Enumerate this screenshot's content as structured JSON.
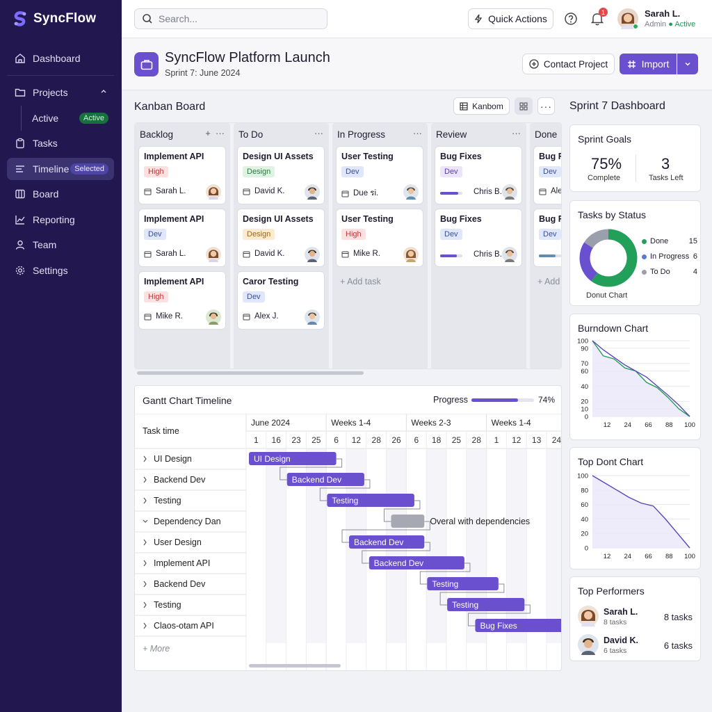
{
  "app": {
    "name": "SyncFlow"
  },
  "sidebar": {
    "items": [
      {
        "label": "Dashboard",
        "icon": "home-icon"
      },
      {
        "label": "Projects",
        "icon": "folder-icon"
      },
      {
        "label": "Active",
        "badge": "Active"
      },
      {
        "label": "Tasks",
        "icon": "clipboard-icon"
      },
      {
        "label": "Timeline",
        "badge": "Selected",
        "icon": "timeline-icon"
      },
      {
        "label": "Board",
        "icon": "board-icon"
      },
      {
        "label": "Reporting",
        "icon": "chart-line-icon"
      },
      {
        "label": "Team",
        "icon": "user-icon"
      },
      {
        "label": "Settings",
        "icon": "gear-icon"
      }
    ]
  },
  "topbar": {
    "search_placeholder": "Search...",
    "quick_actions": "Quick Actions",
    "notif_count": "1",
    "user": {
      "name": "Sarah L.",
      "role": "Admin",
      "status": "Active"
    }
  },
  "project": {
    "title": "SyncFlow Platform Launch",
    "subtitle": "Sprint 7: June 2024",
    "contact_label": "Contact Project",
    "import_label": "Import"
  },
  "kanban": {
    "title": "Kanban Board",
    "view_label": "Kanbom",
    "add_task": "+ Add task",
    "add_short": "+ Add",
    "columns": [
      {
        "title": "Backlog",
        "cards": [
          {
            "title": "Implement API",
            "tag": "High",
            "assignee": "Sarah L."
          },
          {
            "title": "Implement API",
            "tag": "Dev",
            "assignee": "Sarah L."
          },
          {
            "title": "Implement API",
            "tag": "High",
            "assignee": "Mike R."
          }
        ]
      },
      {
        "title": "To Do",
        "cards": [
          {
            "title": "Design UI Assets",
            "tag": "Design",
            "assignee": "David K."
          },
          {
            "title": "Design UI Assets",
            "tag": "Design",
            "assignee": "David K."
          },
          {
            "title": "Caror Testing",
            "tag": "Dev",
            "assignee": "Alex J."
          }
        ]
      },
      {
        "title": "In Progress",
        "cards": [
          {
            "title": "User Testing",
            "tag": "Dev",
            "assignee": "Due รi."
          },
          {
            "title": "User Testing",
            "tag": "High",
            "assignee": "Mike R."
          }
        ]
      },
      {
        "title": "Review",
        "cards": [
          {
            "title": "Bug Fixes",
            "tag": "Dev",
            "assignee": "Chris B.",
            "progress": 0.8
          },
          {
            "title": "Bug Fixes",
            "tag": "Dev",
            "assignee": "Chris B.",
            "progress": 0.75
          }
        ]
      },
      {
        "title": "Done",
        "cards": [
          {
            "title": "Bug Fi",
            "tag": "Dev",
            "assignee": "Ale"
          },
          {
            "title": "Bug Fi",
            "tag": "Dev",
            "progress": 0.75
          }
        ]
      }
    ]
  },
  "gantt": {
    "title": "Gantt Chart Timeline",
    "progress_label": "Progress",
    "progress_value": 0.74,
    "progress_text": "74%",
    "task_header": "Task time",
    "months": [
      "June 2024",
      "Weeks 1-4",
      "Weeks 2-3",
      "Weeks 1-4"
    ],
    "days": [
      "1",
      "16",
      "23",
      "25",
      "6",
      "12",
      "28",
      "26",
      "6",
      "18",
      "25",
      "28",
      "1",
      "12",
      "13",
      "24"
    ],
    "tasks": [
      "UI Design",
      "Backend Dev",
      "Testing",
      "Dependency Dan",
      "User Design",
      "Implement API",
      "Backend Dev",
      "Testing",
      "Claos-otam API"
    ],
    "more": "+ More",
    "bars": [
      {
        "label": "UI Design",
        "start": 0,
        "end": 4.5
      },
      {
        "label": "Backend Dev",
        "start": 1.9,
        "end": 5.9
      },
      {
        "label": "Testing",
        "start": 3.9,
        "end": 8.4
      },
      {
        "label": "",
        "start": 7.1,
        "end": 8.9,
        "note": "Overal with dependencies"
      },
      {
        "label": "Backend Dev",
        "start": 5.0,
        "end": 8.9
      },
      {
        "label": "Backend Dev",
        "start": 6.0,
        "end": 10.9
      },
      {
        "label": "Testing",
        "start": 8.9,
        "end": 12.6
      },
      {
        "label": "Testing",
        "start": 9.9,
        "end": 13.9
      },
      {
        "label": "Bug Fixes",
        "start": 11.3,
        "end": 16
      }
    ]
  },
  "dashboard": {
    "title": "Sprint 7 Dashboard",
    "goals": {
      "title": "Sprint Goals",
      "complete_value": "75%",
      "complete_label": "Complete",
      "tasks_left_value": "3",
      "tasks_left_label": "Tasks Left"
    },
    "status": {
      "title": "Tasks by Status",
      "caption": "Donut Chart"
    },
    "burndown": {
      "title": "Burndown Chart"
    },
    "top_chart": {
      "title": "Top Dont Chart"
    },
    "performers": {
      "title": "Top Performers",
      "people": [
        {
          "name": "Sarah L.",
          "sub": "8 tasks",
          "tasks": "8 tasks"
        },
        {
          "name": "David K.",
          "sub": "6 tasks",
          "tasks": "6 tasks"
        }
      ]
    }
  },
  "chart_data": [
    {
      "type": "pie",
      "title": "Tasks by Status",
      "labels": [
        "Done",
        "In Progress",
        "To Do"
      ],
      "values": [
        15,
        6,
        4
      ],
      "colors": [
        "#22a05a",
        "#6a4fcf",
        "#9aa0ab"
      ]
    },
    {
      "type": "line",
      "title": "Burndown Chart",
      "x_ticks": [
        "12",
        "24",
        "66",
        "88",
        "100"
      ],
      "y_ticks": [
        "0",
        "10",
        "20",
        "40",
        "60",
        "70",
        "90",
        "100"
      ],
      "ylim": [
        0,
        100
      ],
      "series": [
        {
          "values": [
            100,
            80,
            76,
            64,
            60,
            45,
            38,
            25,
            10,
            0
          ],
          "color": "#22a05a"
        },
        {
          "values": [
            100,
            88,
            78,
            68,
            60,
            52,
            40,
            28,
            15,
            0
          ],
          "color": "#5b45b8"
        }
      ]
    },
    {
      "type": "area",
      "title": "Top Dont Chart",
      "x_ticks": [
        "12",
        "24",
        "66",
        "88",
        "100"
      ],
      "y_ticks": [
        "0",
        "20",
        "40",
        "60",
        "80",
        "100"
      ],
      "ylim": [
        0,
        100
      ],
      "series": [
        {
          "values": [
            100,
            90,
            80,
            70,
            62,
            58,
            40,
            20,
            0
          ],
          "color": "#5b45b8"
        }
      ]
    }
  ]
}
